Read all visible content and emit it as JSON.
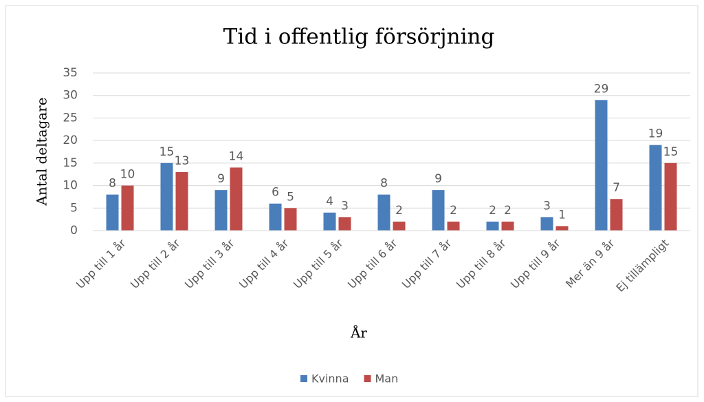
{
  "chart_data": {
    "type": "bar",
    "title": "Tid i offentlig försörjning",
    "x_label": "År",
    "y_label": "Antal deltagare",
    "categories": [
      "Upp till 1 år",
      "Upp till 2 år",
      "Upp till 3 år",
      "Upp till 4 år",
      "Upp till 5 år",
      "Upp till 6 år",
      "Upp till 7 år",
      "Upp till 8 år",
      "Upp till 9 år",
      "Mer än 9 år",
      "Ej tillämpligt"
    ],
    "series": [
      {
        "name": "Kvinna",
        "color": "#4a7ebb",
        "values": [
          8,
          15,
          9,
          6,
          4,
          8,
          9,
          2,
          3,
          29,
          19
        ]
      },
      {
        "name": "Man",
        "color": "#be4b48",
        "values": [
          10,
          13,
          14,
          5,
          3,
          2,
          2,
          2,
          1,
          7,
          15
        ]
      }
    ],
    "ylim": [
      0,
      35
    ],
    "yticks": [
      0,
      5,
      10,
      15,
      20,
      25,
      30,
      35
    ],
    "grid": true,
    "legend": "bottom"
  }
}
